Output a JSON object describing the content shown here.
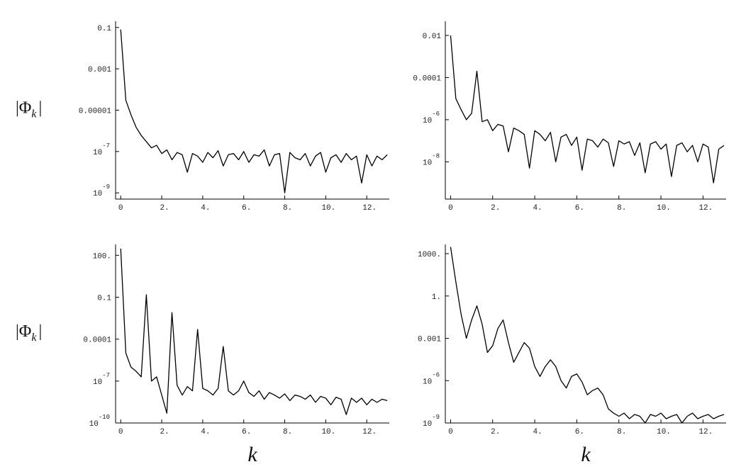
{
  "chart_data": [
    {
      "type": "line",
      "log_y": true,
      "color": "#000000",
      "ylabel": {
        "text": "|Φ",
        "subscript": "k",
        "end": "|"
      },
      "x": [
        0,
        0.25,
        0.5,
        0.75,
        1,
        1.25,
        1.5,
        1.75,
        2,
        2.25,
        2.5,
        2.75,
        3,
        3.25,
        3.5,
        3.75,
        4,
        4.25,
        4.5,
        4.75,
        5,
        5.25,
        5.5,
        5.75,
        6,
        6.25,
        6.5,
        6.75,
        7,
        7.25,
        7.5,
        7.75,
        8,
        8.25,
        8.5,
        8.75,
        9,
        9.25,
        9.5,
        9.75,
        10,
        10.25,
        10.5,
        10.75,
        11,
        11.25,
        11.5,
        11.75,
        12,
        12.25,
        12.5,
        12.75,
        13
      ],
      "values": [
        0.08,
        3e-05,
        6e-06,
        1.5e-06,
        6e-07,
        3e-07,
        1.5e-07,
        2e-07,
        8e-08,
        1.2e-07,
        4e-08,
        9e-08,
        7e-08,
        1e-08,
        8e-08,
        6e-08,
        3e-08,
        9e-08,
        5e-08,
        1.1e-07,
        2e-08,
        7e-08,
        8e-08,
        4e-08,
        1e-07,
        3e-08,
        7e-08,
        6e-08,
        1.2e-07,
        2e-08,
        7e-08,
        8e-08,
        1e-09,
        9e-08,
        5e-08,
        4e-08,
        8e-08,
        2e-08,
        6e-08,
        9e-08,
        1e-08,
        5e-08,
        7e-08,
        3e-08,
        8e-08,
        4e-08,
        6e-08,
        3e-09,
        7e-08,
        2e-08,
        6e-08,
        4e-08,
        7e-08
      ],
      "xlim": [
        -0.25,
        13.1
      ],
      "ylim": [
        5e-10,
        0.2
      ],
      "xticks": [
        0,
        {
          "value": 2,
          "label": "2."
        },
        {
          "value": 4,
          "label": "4."
        },
        {
          "value": 6,
          "label": "6."
        },
        {
          "value": 8,
          "label": "8."
        },
        {
          "value": 10,
          "label": "10."
        },
        {
          "value": 12,
          "label": "12."
        }
      ],
      "yticks": [
        0.1,
        0.001,
        1e-05,
        {
          "value": 1e-07,
          "label": "10",
          "exponent": "-7"
        },
        {
          "value": 1e-09,
          "label": "10",
          "exponent": "-9"
        }
      ]
    },
    {
      "type": "line",
      "log_y": true,
      "color": "#000000",
      "x": [
        0,
        0.25,
        0.5,
        0.75,
        1,
        1.25,
        1.5,
        1.75,
        2,
        2.25,
        2.5,
        2.75,
        3,
        3.25,
        3.5,
        3.75,
        4,
        4.25,
        4.5,
        4.75,
        5,
        5.25,
        5.5,
        5.75,
        6,
        6.25,
        6.5,
        6.75,
        7,
        7.25,
        7.5,
        7.75,
        8,
        8.25,
        8.5,
        8.75,
        9,
        9.25,
        9.5,
        9.75,
        10,
        10.25,
        10.5,
        10.75,
        11,
        11.25,
        11.5,
        11.75,
        12,
        12.25,
        12.5,
        12.75,
        13
      ],
      "values": [
        0.01,
        1e-05,
        3e-06,
        1e-06,
        2e-06,
        0.0002,
        8e-07,
        1e-06,
        3e-07,
        6e-07,
        5e-07,
        3e-08,
        4e-07,
        3e-07,
        2e-07,
        5e-09,
        3e-07,
        2e-07,
        1e-07,
        2.5e-07,
        1e-08,
        1.5e-07,
        2e-07,
        6e-08,
        1.5e-07,
        4e-09,
        1.2e-07,
        1e-07,
        5e-08,
        1.2e-07,
        8e-08,
        6e-09,
        1e-07,
        7e-08,
        9e-08,
        2e-08,
        8e-08,
        3e-09,
        7e-08,
        9e-08,
        4e-08,
        7e-08,
        2e-09,
        6e-08,
        8e-08,
        3e-08,
        6e-08,
        1e-08,
        7e-08,
        5e-08,
        1e-09,
        4e-08,
        6e-08
      ],
      "xlim": [
        -0.25,
        13.1
      ],
      "ylim": [
        1.7e-10,
        0.047
      ],
      "xticks": [
        0,
        {
          "value": 2,
          "label": "2."
        },
        {
          "value": 4,
          "label": "4."
        },
        {
          "value": 6,
          "label": "6."
        },
        {
          "value": 8,
          "label": "8."
        },
        {
          "value": 10,
          "label": "10."
        },
        {
          "value": 12,
          "label": "12."
        }
      ],
      "yticks": [
        0.01,
        0.0001,
        {
          "value": 1e-06,
          "label": "10",
          "exponent": "-6"
        },
        {
          "value": 1e-08,
          "label": "10",
          "exponent": "-8"
        }
      ]
    },
    {
      "type": "line",
      "log_y": true,
      "color": "#000000",
      "ylabel": {
        "text": "|Φ",
        "subscript": "k",
        "end": "|"
      },
      "xlabel": "k",
      "x": [
        0,
        0.25,
        0.5,
        0.75,
        1,
        1.25,
        1.5,
        1.75,
        2,
        2.25,
        2.5,
        2.75,
        3,
        3.25,
        3.5,
        3.75,
        4,
        4.25,
        4.5,
        4.75,
        5,
        5.25,
        5.5,
        5.75,
        6,
        6.25,
        6.5,
        6.75,
        7,
        7.25,
        7.5,
        7.75,
        8,
        8.25,
        8.5,
        8.75,
        9,
        9.25,
        9.5,
        9.75,
        10,
        10.25,
        10.5,
        10.75,
        11,
        11.25,
        11.5,
        11.75,
        12,
        12.25,
        12.5,
        12.75,
        13
      ],
      "values": [
        300,
        1e-05,
        1e-06,
        5e-07,
        2e-07,
        0.15,
        1e-07,
        2e-07,
        1e-08,
        5e-10,
        0.008,
        5e-08,
        1e-08,
        4e-08,
        2e-08,
        0.0005,
        3e-08,
        2e-08,
        1e-08,
        3e-08,
        3e-05,
        2e-08,
        1e-08,
        2e-08,
        1e-07,
        1.5e-08,
        8e-09,
        2e-08,
        5e-09,
        1.5e-08,
        1e-08,
        6e-09,
        1.2e-08,
        4e-09,
        1e-08,
        8e-09,
        5e-09,
        1e-08,
        3e-09,
        8e-09,
        6e-09,
        2e-09,
        7e-09,
        5e-09,
        4e-10,
        6e-09,
        3e-09,
        6e-09,
        2e-09,
        5e-09,
        3e-09,
        5e-09,
        4e-09
      ],
      "xlim": [
        -0.25,
        13.1
      ],
      "ylim": [
        1e-10,
        600
      ],
      "xticks": [
        0,
        {
          "value": 2,
          "label": "2."
        },
        {
          "value": 4,
          "label": "4."
        },
        {
          "value": 6,
          "label": "6."
        },
        {
          "value": 8,
          "label": "8."
        },
        {
          "value": 10,
          "label": "10."
        },
        {
          "value": 12,
          "label": "12."
        }
      ],
      "yticks": [
        {
          "value": 100,
          "label": "100."
        },
        0.1,
        0.0001,
        {
          "value": 1e-07,
          "label": "10",
          "exponent": "-7"
        },
        {
          "value": 1e-10,
          "label": "10",
          "exponent": "-10"
        }
      ]
    },
    {
      "type": "line",
      "log_y": true,
      "color": "#000000",
      "xlabel": "k",
      "x": [
        0,
        0.25,
        0.5,
        0.75,
        1,
        1.25,
        1.5,
        1.75,
        2,
        2.25,
        2.5,
        2.75,
        3,
        3.25,
        3.5,
        3.75,
        4,
        4.25,
        4.5,
        4.75,
        5,
        5.25,
        5.5,
        5.75,
        6,
        6.25,
        6.5,
        6.75,
        7,
        7.25,
        7.5,
        7.75,
        8,
        8.25,
        8.5,
        8.75,
        9,
        9.25,
        9.5,
        9.75,
        10,
        10.25,
        10.5,
        10.75,
        11,
        11.25,
        11.5,
        11.75,
        12,
        12.25,
        12.5,
        12.75,
        13
      ],
      "values": [
        3000,
        10,
        0.05,
        0.001,
        0.02,
        0.2,
        0.01,
        0.0001,
        0.0003,
        0.005,
        0.02,
        0.0005,
        2e-05,
        0.0001,
        0.0005,
        0.0002,
        1e-05,
        2e-06,
        1e-05,
        3e-05,
        1e-05,
        1e-06,
        3e-07,
        2e-06,
        3e-06,
        8e-07,
        1e-07,
        2e-07,
        3e-07,
        1e-07,
        1e-08,
        5e-09,
        3e-09,
        5e-09,
        2e-09,
        4e-09,
        3e-09,
        1e-09,
        4e-09,
        3e-09,
        5e-09,
        2e-09,
        3e-09,
        4e-09,
        1e-09,
        3e-09,
        5e-09,
        2e-09,
        3e-09,
        4e-09,
        2e-09,
        3e-09,
        4e-09
      ],
      "xlim": [
        -0.25,
        13.1
      ],
      "ylim": [
        1e-09,
        4500
      ],
      "xticks": [
        0,
        {
          "value": 2,
          "label": "2."
        },
        {
          "value": 4,
          "label": "4."
        },
        {
          "value": 6,
          "label": "6."
        },
        {
          "value": 8,
          "label": "8."
        },
        {
          "value": 10,
          "label": "10."
        },
        {
          "value": 12,
          "label": "12."
        }
      ],
      "yticks": [
        {
          "value": 1000,
          "label": "1000."
        },
        {
          "value": 1,
          "label": "1."
        },
        0.001,
        {
          "value": 1e-06,
          "label": "10",
          "exponent": "-6"
        },
        {
          "value": 1e-09,
          "label": "10",
          "exponent": "-9"
        }
      ]
    }
  ]
}
